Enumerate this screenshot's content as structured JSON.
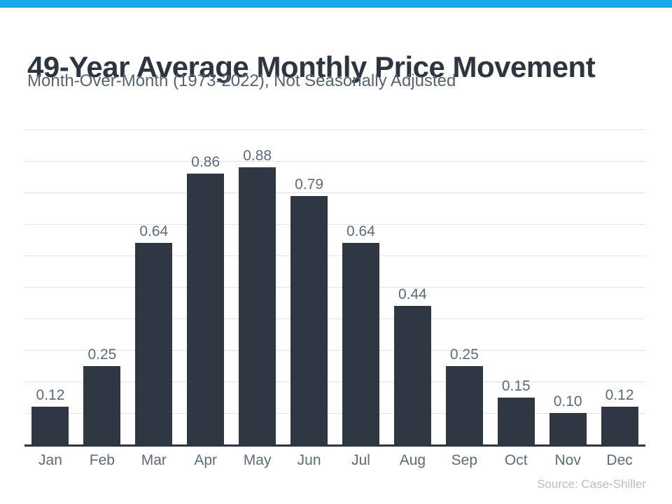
{
  "accent": {
    "top_bar_color": "#18a9ea"
  },
  "header": {
    "title": "49-Year Average Monthly Price Movement",
    "subtitle": "Month-Over-Month (1973-2022), Not Seasonally Adjusted"
  },
  "chart_data": {
    "type": "bar",
    "title": "49-Year Average Monthly Price Movement",
    "subtitle": "Month-Over-Month (1973-2022), Not Seasonally Adjusted",
    "categories": [
      "Jan",
      "Feb",
      "Mar",
      "Apr",
      "May",
      "Jun",
      "Jul",
      "Aug",
      "Sep",
      "Oct",
      "Nov",
      "Dec"
    ],
    "values": [
      0.12,
      0.25,
      0.64,
      0.86,
      0.88,
      0.79,
      0.64,
      0.44,
      0.25,
      0.15,
      0.1,
      0.12
    ],
    "value_labels": [
      "0.12",
      "0.25",
      "0.64",
      "0.86",
      "0.88",
      "0.79",
      "0.64",
      "0.44",
      "0.25",
      "0.15",
      "0.10",
      "0.12"
    ],
    "xlabel": "",
    "ylabel": "",
    "ylim": [
      0,
      1.0
    ],
    "gridline_step": 0.1,
    "grid": true,
    "y_tick_labels_visible": false,
    "legend": "none",
    "bar_color": "#2e3742",
    "axis_color": "#2d3640",
    "grid_color": "#e3e4e5",
    "label_color": "#5c6b7a"
  },
  "footer": {
    "source": "Source: Case-Shiller"
  }
}
